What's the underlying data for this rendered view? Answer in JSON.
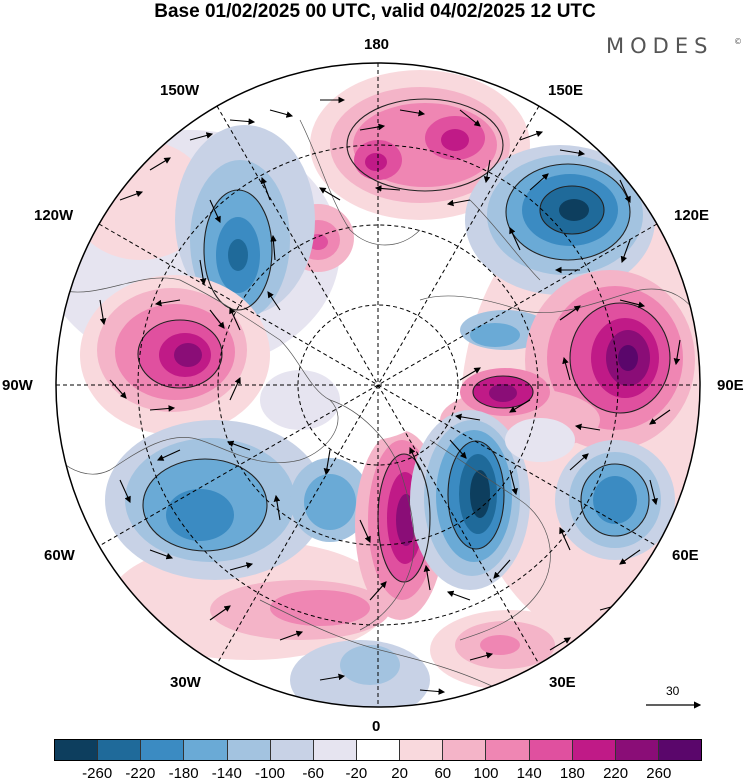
{
  "title": "Base 01/02/2025 00 UTC, valid 04/02/2025 12 UTC",
  "brand": "MODES",
  "brand_mark": "©",
  "longitude_labels": {
    "top": "180",
    "top_left": "150W",
    "top_right": "150E",
    "upper_left": "120W",
    "upper_right": "120E",
    "left": "90W",
    "right": "90E",
    "lower_left": "60W",
    "lower_right": "60E",
    "bottom_left": "30W",
    "bottom_right": "30E",
    "bottom": "0"
  },
  "vector_reference": "30",
  "colorbar": {
    "colors": [
      "#0d3e5e",
      "#1f6a9a",
      "#3b8bc2",
      "#6aaad6",
      "#a3c3e0",
      "#c8d2e6",
      "#e6e4f0",
      "#ffffff",
      "#f9d9dd",
      "#f4b4c8",
      "#ef86b3",
      "#e0509f",
      "#c01a87",
      "#8a0d77",
      "#5a066b"
    ],
    "tick_labels": [
      "-260",
      "-220",
      "-180",
      "-140",
      "-100",
      "-60",
      "-20",
      "20",
      "60",
      "100",
      "140",
      "180",
      "220",
      "260"
    ]
  }
}
